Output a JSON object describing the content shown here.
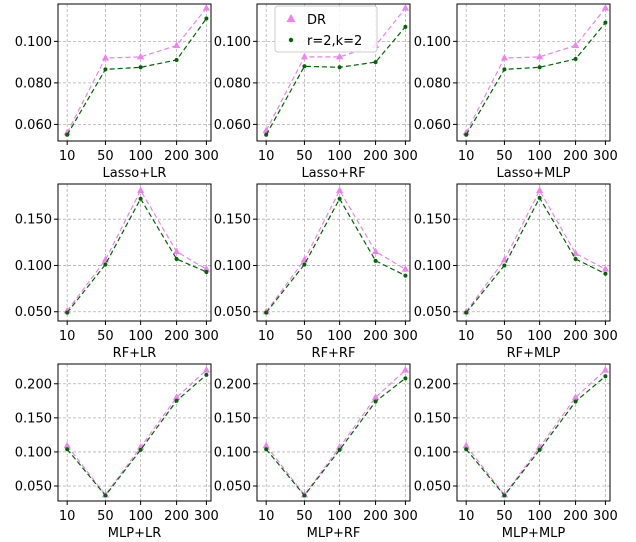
{
  "chart_data": [
    {
      "type": "line",
      "xlabel": "Lasso+LR",
      "x": [
        10,
        50,
        100,
        200,
        300
      ],
      "yticks": [
        "0.060",
        "0.080",
        "0.100"
      ],
      "ylim": [
        0.052,
        0.118
      ],
      "series": [
        {
          "name": "DR",
          "values": [
            0.056,
            0.092,
            0.0925,
            0.098,
            0.116
          ]
        },
        {
          "name": "r=2,k=2",
          "values": [
            0.055,
            0.0865,
            0.0875,
            0.091,
            0.111
          ]
        }
      ]
    },
    {
      "type": "line",
      "xlabel": "Lasso+RF",
      "x": [
        10,
        50,
        100,
        200,
        300
      ],
      "yticks": [
        "0.060",
        "0.080",
        "0.100"
      ],
      "ylim": [
        0.052,
        0.118
      ],
      "series": [
        {
          "name": "DR",
          "values": [
            0.057,
            0.0925,
            0.0925,
            0.098,
            0.116
          ]
        },
        {
          "name": "r=2,k=2",
          "values": [
            0.055,
            0.088,
            0.0875,
            0.09,
            0.107
          ]
        }
      ]
    },
    {
      "type": "line",
      "xlabel": "Lasso+MLP",
      "x": [
        10,
        50,
        100,
        200,
        300
      ],
      "yticks": [
        "0.060",
        "0.080",
        "0.100"
      ],
      "ylim": [
        0.052,
        0.118
      ],
      "series": [
        {
          "name": "DR",
          "values": [
            0.056,
            0.092,
            0.0925,
            0.098,
            0.116
          ]
        },
        {
          "name": "r=2,k=2",
          "values": [
            0.055,
            0.0865,
            0.0875,
            0.0915,
            0.109
          ]
        }
      ]
    },
    {
      "type": "line",
      "xlabel": "RF+LR",
      "x": [
        10,
        50,
        100,
        200,
        300
      ],
      "yticks": [
        "0.050",
        "0.100",
        "0.150"
      ],
      "ylim": [
        0.04,
        0.188
      ],
      "series": [
        {
          "name": "DR",
          "values": [
            0.051,
            0.106,
            0.181,
            0.115,
            0.096
          ]
        },
        {
          "name": "r=2,k=2",
          "values": [
            0.049,
            0.101,
            0.172,
            0.107,
            0.093
          ]
        }
      ]
    },
    {
      "type": "line",
      "xlabel": "RF+RF",
      "x": [
        10,
        50,
        100,
        200,
        300
      ],
      "yticks": [
        "0.050",
        "0.100",
        "0.150"
      ],
      "ylim": [
        0.04,
        0.188
      ],
      "series": [
        {
          "name": "DR",
          "values": [
            0.05,
            0.106,
            0.181,
            0.115,
            0.096
          ]
        },
        {
          "name": "r=2,k=2",
          "values": [
            0.049,
            0.101,
            0.172,
            0.105,
            0.089
          ]
        }
      ]
    },
    {
      "type": "line",
      "xlabel": "RF+MLP",
      "x": [
        10,
        50,
        100,
        200,
        300
      ],
      "yticks": [
        "0.050",
        "0.100",
        "0.150"
      ],
      "ylim": [
        0.04,
        0.188
      ],
      "series": [
        {
          "name": "DR",
          "values": [
            0.05,
            0.106,
            0.181,
            0.113,
            0.096
          ]
        },
        {
          "name": "r=2,k=2",
          "values": [
            0.049,
            0.1,
            0.173,
            0.107,
            0.091
          ]
        }
      ]
    },
    {
      "type": "line",
      "xlabel": "MLP+LR",
      "x": [
        10,
        50,
        100,
        200,
        300
      ],
      "yticks": [
        "0.050",
        "0.100",
        "0.150",
        "0.200"
      ],
      "ylim": [
        0.028,
        0.229
      ],
      "series": [
        {
          "name": "DR",
          "values": [
            0.109,
            0.037,
            0.107,
            0.18,
            0.22
          ]
        },
        {
          "name": "r=2,k=2",
          "values": [
            0.104,
            0.036,
            0.103,
            0.175,
            0.213
          ]
        }
      ]
    },
    {
      "type": "line",
      "xlabel": "MLP+RF",
      "x": [
        10,
        50,
        100,
        200,
        300
      ],
      "yticks": [
        "0.050",
        "0.100",
        "0.150",
        "0.200"
      ],
      "ylim": [
        0.028,
        0.229
      ],
      "series": [
        {
          "name": "DR",
          "values": [
            0.109,
            0.037,
            0.107,
            0.18,
            0.22
          ]
        },
        {
          "name": "r=2,k=2",
          "values": [
            0.104,
            0.036,
            0.103,
            0.174,
            0.208
          ]
        }
      ]
    },
    {
      "type": "line",
      "xlabel": "MLP+MLP",
      "x": [
        10,
        50,
        100,
        200,
        300
      ],
      "yticks": [
        "0.050",
        "0.100",
        "0.150",
        "0.200"
      ],
      "ylim": [
        0.028,
        0.229
      ],
      "series": [
        {
          "name": "DR",
          "values": [
            0.109,
            0.037,
            0.107,
            0.18,
            0.22
          ]
        },
        {
          "name": "r=2,k=2",
          "values": [
            0.104,
            0.036,
            0.103,
            0.174,
            0.211
          ]
        }
      ]
    }
  ],
  "xticks": [
    "10",
    "50",
    "100",
    "200",
    "300"
  ],
  "legend": {
    "entries": [
      {
        "label": "DR"
      },
      {
        "label": "r=2,k=2"
      }
    ],
    "placement": "top-left of second panel"
  },
  "colors": {
    "dr": "#ee82ee",
    "r2k2": "#006400",
    "grid": "#b0b0b0",
    "axis": "#000000"
  }
}
